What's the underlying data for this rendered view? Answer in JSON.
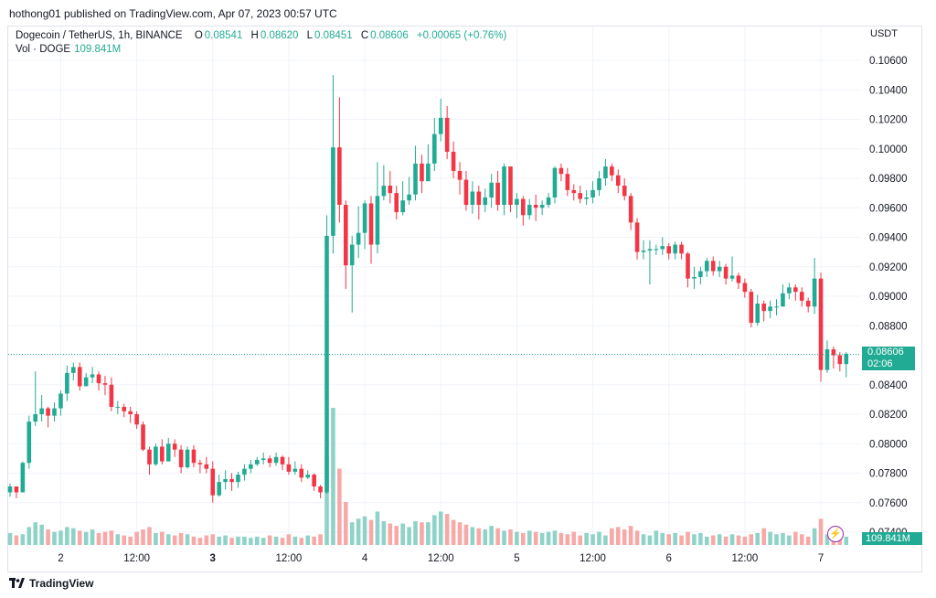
{
  "header": {
    "published": "hothong01 published on TradingView.com, Apr 07, 2023 00:57 UTC"
  },
  "legend": {
    "symbol": "Dogecoin / TetherUS, 1h, BINANCE",
    "o_label": "O",
    "o_value": "0.08541",
    "h_label": "H",
    "h_value": "0.08620",
    "l_label": "L",
    "l_value": "0.08451",
    "c_label": "C",
    "c_value": "0.08606",
    "change": "+0.00065 (+0.76%)",
    "vol_label": "Vol · DOGE",
    "vol_value": "109.841M"
  },
  "price_badge": {
    "price": "0.08606",
    "countdown": "02:06"
  },
  "volume_badge": {
    "value": "109.841M"
  },
  "footer": {
    "brand": "TradingView"
  },
  "colors": {
    "up": "#22ab94",
    "down": "#f23645",
    "up_vol": "#8fd3c8",
    "down_vol": "#f7a9a7",
    "grid": "#f0f3fa",
    "text": "#131722",
    "last_line": "#22ab94"
  },
  "chart_data": {
    "type": "candlestick",
    "quote_unit": "USDT",
    "y_ticks": [
      "0.10600",
      "0.10400",
      "0.10200",
      "0.10000",
      "0.09800",
      "0.09600",
      "0.09400",
      "0.09200",
      "0.09000",
      "0.08800",
      "0.08600",
      "0.08400",
      "0.08200",
      "0.08000",
      "0.07800",
      "0.07600",
      "0.07400"
    ],
    "ylim": [
      0.0735,
      0.1075
    ],
    "x_ticks": [
      {
        "label": "2",
        "bold": false,
        "idx": 8
      },
      {
        "label": "12:00",
        "bold": false,
        "idx": 20
      },
      {
        "label": "3",
        "bold": true,
        "idx": 32
      },
      {
        "label": "12:00",
        "bold": false,
        "idx": 44
      },
      {
        "label": "4",
        "bold": false,
        "idx": 56
      },
      {
        "label": "12:00",
        "bold": false,
        "idx": 68
      },
      {
        "label": "5",
        "bold": false,
        "idx": 80
      },
      {
        "label": "12:00",
        "bold": false,
        "idx": 92
      },
      {
        "label": "6",
        "bold": false,
        "idx": 104
      },
      {
        "label": "12:00",
        "bold": false,
        "idx": 116
      },
      {
        "label": "7",
        "bold": false,
        "idx": 128
      }
    ],
    "last_price": 0.08606,
    "start_open": 0.0767,
    "candles": [
      [
        0.0771,
        0.0773,
        0.0764
      ],
      [
        0.0767,
        0.0771,
        0.0763
      ],
      [
        0.0787,
        0.0788,
        0.0772
      ],
      [
        0.0815,
        0.0819,
        0.0783
      ],
      [
        0.082,
        0.0849,
        0.0812
      ],
      [
        0.0824,
        0.0833,
        0.0815
      ],
      [
        0.0819,
        0.0825,
        0.0811
      ],
      [
        0.0824,
        0.0828,
        0.0815
      ],
      [
        0.0834,
        0.0836,
        0.0819
      ],
      [
        0.0848,
        0.0853,
        0.0829
      ],
      [
        0.0852,
        0.0855,
        0.0843
      ],
      [
        0.0839,
        0.0855,
        0.0836
      ],
      [
        0.0845,
        0.0848,
        0.0839
      ],
      [
        0.0847,
        0.0852,
        0.0841
      ],
      [
        0.0841,
        0.0849,
        0.0836
      ],
      [
        0.084,
        0.0846,
        0.0833
      ],
      [
        0.0825,
        0.0845,
        0.0822
      ],
      [
        0.0825,
        0.0829,
        0.082
      ],
      [
        0.0822,
        0.0827,
        0.0818
      ],
      [
        0.082,
        0.0825,
        0.0814
      ],
      [
        0.0813,
        0.0822,
        0.081
      ],
      [
        0.0796,
        0.0815,
        0.0795
      ],
      [
        0.0786,
        0.0798,
        0.0779
      ],
      [
        0.0798,
        0.08,
        0.0785
      ],
      [
        0.0788,
        0.0803,
        0.0786
      ],
      [
        0.08,
        0.0804,
        0.0788
      ],
      [
        0.0796,
        0.0803,
        0.0791
      ],
      [
        0.0784,
        0.0799,
        0.078
      ],
      [
        0.0796,
        0.0798,
        0.0783
      ],
      [
        0.0787,
        0.0799,
        0.0784
      ],
      [
        0.0786,
        0.0789,
        0.078
      ],
      [
        0.0783,
        0.0791,
        0.078
      ],
      [
        0.0765,
        0.0788,
        0.076
      ],
      [
        0.0774,
        0.0779,
        0.0764
      ],
      [
        0.0776,
        0.0782,
        0.0769
      ],
      [
        0.0774,
        0.078,
        0.0768
      ],
      [
        0.0779,
        0.0781,
        0.077
      ],
      [
        0.0783,
        0.0786,
        0.0775
      ],
      [
        0.0786,
        0.0789,
        0.078
      ],
      [
        0.0789,
        0.0791,
        0.0785
      ],
      [
        0.079,
        0.0794,
        0.0786
      ],
      [
        0.0787,
        0.0792,
        0.0784
      ],
      [
        0.0791,
        0.0794,
        0.0785
      ],
      [
        0.0786,
        0.0792,
        0.0782
      ],
      [
        0.0781,
        0.0791,
        0.0779
      ],
      [
        0.0783,
        0.0788,
        0.0779
      ],
      [
        0.0777,
        0.0786,
        0.0774
      ],
      [
        0.0779,
        0.0782,
        0.0776
      ],
      [
        0.0771,
        0.078,
        0.0768
      ],
      [
        0.0767,
        0.0772,
        0.0763
      ],
      [
        0.0941,
        0.0955,
        0.0766
      ],
      [
        0.1001,
        0.105,
        0.0929
      ],
      [
        0.0962,
        0.1035,
        0.095
      ],
      [
        0.0921,
        0.0965,
        0.0905
      ],
      [
        0.0935,
        0.0941,
        0.0889
      ],
      [
        0.0943,
        0.0961,
        0.0926
      ],
      [
        0.0963,
        0.0965,
        0.0932
      ],
      [
        0.0935,
        0.0968,
        0.0922
      ],
      [
        0.0968,
        0.0991,
        0.0929
      ],
      [
        0.0975,
        0.0989,
        0.0965
      ],
      [
        0.097,
        0.0985,
        0.0963
      ],
      [
        0.0957,
        0.0975,
        0.0952
      ],
      [
        0.0965,
        0.0978,
        0.0955
      ],
      [
        0.0969,
        0.0981,
        0.0962
      ],
      [
        0.099,
        0.1002,
        0.0965
      ],
      [
        0.0978,
        0.0996,
        0.097
      ],
      [
        0.099,
        0.1003,
        0.0979
      ],
      [
        0.101,
        0.1021,
        0.0985
      ],
      [
        0.1021,
        0.1034,
        0.1005
      ],
      [
        0.0998,
        0.1029,
        0.0993
      ],
      [
        0.0985,
        0.1005,
        0.098
      ],
      [
        0.0979,
        0.0991,
        0.0969
      ],
      [
        0.0962,
        0.0985,
        0.0958
      ],
      [
        0.0971,
        0.0978,
        0.0956
      ],
      [
        0.0962,
        0.0975,
        0.0952
      ],
      [
        0.0967,
        0.0973,
        0.0957
      ],
      [
        0.0977,
        0.0983,
        0.096
      ],
      [
        0.0962,
        0.0985,
        0.0958
      ],
      [
        0.0988,
        0.099,
        0.0955
      ],
      [
        0.0962,
        0.0988,
        0.0957
      ],
      [
        0.0966,
        0.097,
        0.0953
      ],
      [
        0.0955,
        0.0968,
        0.0948
      ],
      [
        0.0962,
        0.0966,
        0.0952
      ],
      [
        0.096,
        0.0969,
        0.0951
      ],
      [
        0.0962,
        0.0965,
        0.0955
      ],
      [
        0.0967,
        0.097,
        0.096
      ],
      [
        0.0987,
        0.0988,
        0.0963
      ],
      [
        0.0983,
        0.099,
        0.0978
      ],
      [
        0.0972,
        0.0987,
        0.0968
      ],
      [
        0.097,
        0.0976,
        0.0965
      ],
      [
        0.0966,
        0.0975,
        0.0963
      ],
      [
        0.0967,
        0.0972,
        0.0962
      ],
      [
        0.0972,
        0.0978,
        0.0963
      ],
      [
        0.098,
        0.0985,
        0.0968
      ],
      [
        0.0988,
        0.0993,
        0.0975
      ],
      [
        0.0982,
        0.099,
        0.0978
      ],
      [
        0.0975,
        0.0986,
        0.097
      ],
      [
        0.0968,
        0.098,
        0.0965
      ],
      [
        0.095,
        0.097,
        0.0945
      ],
      [
        0.093,
        0.0953,
        0.0925
      ],
      [
        0.0931,
        0.0938,
        0.0925
      ],
      [
        0.0932,
        0.0938,
        0.0908
      ],
      [
        0.0932,
        0.0935,
        0.0928
      ],
      [
        0.0934,
        0.094,
        0.0928
      ],
      [
        0.0929,
        0.0936,
        0.0925
      ],
      [
        0.0935,
        0.0937,
        0.0925
      ],
      [
        0.0929,
        0.0937,
        0.0925
      ],
      [
        0.0912,
        0.093,
        0.0906
      ],
      [
        0.0913,
        0.092,
        0.0905
      ],
      [
        0.0917,
        0.092,
        0.0908
      ],
      [
        0.0924,
        0.0926,
        0.0913
      ],
      [
        0.0917,
        0.0927,
        0.0914
      ],
      [
        0.092,
        0.0924,
        0.0913
      ],
      [
        0.0912,
        0.0922,
        0.0908
      ],
      [
        0.0914,
        0.0927,
        0.091
      ],
      [
        0.0909,
        0.0916,
        0.0905
      ],
      [
        0.0903,
        0.0912,
        0.0899
      ],
      [
        0.0882,
        0.0905,
        0.0879
      ],
      [
        0.0895,
        0.0901,
        0.088
      ],
      [
        0.089,
        0.0897,
        0.0883
      ],
      [
        0.0893,
        0.0897,
        0.0885
      ],
      [
        0.0893,
        0.0898,
        0.0887
      ],
      [
        0.0902,
        0.0908,
        0.0893
      ],
      [
        0.0906,
        0.0909,
        0.0898
      ],
      [
        0.0903,
        0.0908,
        0.0897
      ],
      [
        0.0897,
        0.0906,
        0.0893
      ],
      [
        0.0893,
        0.0899,
        0.0889
      ],
      [
        0.0912,
        0.0926,
        0.0888
      ],
      [
        0.085,
        0.0916,
        0.0842
      ],
      [
        0.0864,
        0.087,
        0.0848
      ],
      [
        0.086,
        0.0866,
        0.0851
      ],
      [
        0.0854,
        0.0862,
        0.0849
      ],
      [
        0.0861,
        0.0862,
        0.0845
      ]
    ],
    "volumes": [
      20,
      16,
      18,
      30,
      38,
      34,
      26,
      22,
      24,
      30,
      28,
      24,
      22,
      26,
      20,
      22,
      24,
      18,
      16,
      14,
      22,
      26,
      30,
      20,
      22,
      18,
      16,
      20,
      18,
      14,
      12,
      16,
      18,
      14,
      16,
      12,
      14,
      14,
      12,
      14,
      12,
      16,
      14,
      12,
      18,
      14,
      12,
      16,
      14,
      18,
      150,
      230,
      128,
      72,
      38,
      44,
      48,
      42,
      56,
      40,
      36,
      32,
      36,
      30,
      40,
      38,
      38,
      50,
      56,
      52,
      42,
      38,
      34,
      30,
      28,
      26,
      32,
      28,
      24,
      26,
      22,
      20,
      24,
      22,
      20,
      22,
      24,
      20,
      18,
      22,
      16,
      20,
      18,
      22,
      16,
      28,
      30,
      26,
      32,
      24,
      18,
      16,
      24,
      20,
      18,
      20,
      16,
      22,
      18,
      20,
      14,
      16,
      18,
      14,
      18,
      16,
      14,
      18,
      20,
      28,
      22,
      18,
      20,
      16,
      22,
      18,
      14,
      28,
      44,
      18,
      22,
      16,
      14
    ]
  }
}
